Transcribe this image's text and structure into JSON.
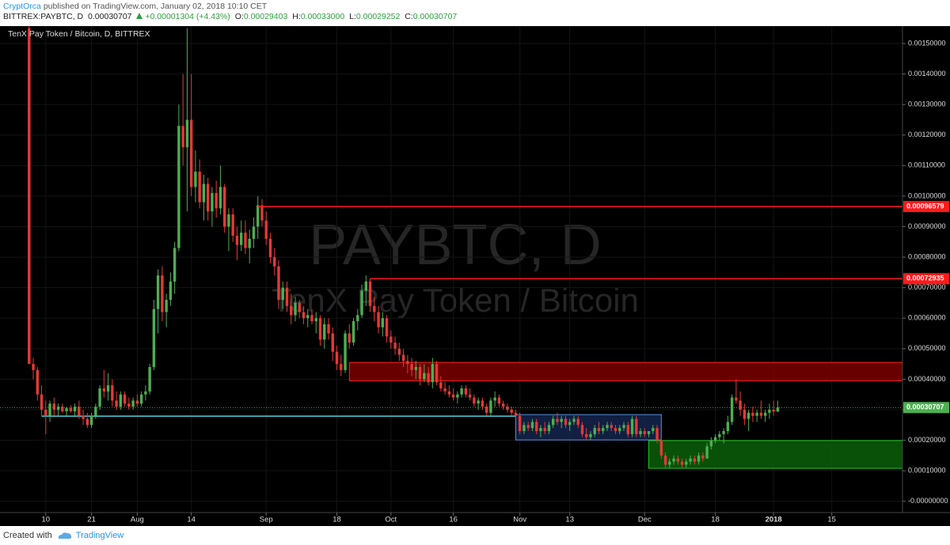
{
  "header": {
    "author": "CryptOrca",
    "published": "published on TradingView.com, January 02, 2018 10:10 CET",
    "symbol": "BITTREX:PAYBTC, D",
    "last": "0.00030707",
    "change": "+0.00001304 (+4.43%)",
    "ohlc": [
      {
        "label": "O:",
        "value": "0.00029403"
      },
      {
        "label": "H:",
        "value": "0.00033000"
      },
      {
        "label": "L:",
        "value": "0.00029252"
      },
      {
        "label": "C:",
        "value": "0.00030707"
      }
    ]
  },
  "footer": {
    "created": "Created with",
    "brand": "TradingView"
  },
  "chart_data": {
    "type": "candlestick",
    "title": "TenX Pay Token / Bitcoin, D, BITTREX",
    "watermark": [
      "PAYBTC, D",
      "TenX Pay Token / Bitcoin"
    ],
    "up_color": "#4caf50",
    "down_color": "#e53935",
    "grid": true,
    "x": [
      "2017-07-06",
      "2017-07-07",
      "2017-07-08",
      "2017-07-09",
      "2017-07-10",
      "2017-07-11",
      "2017-07-12",
      "2017-07-13",
      "2017-07-14",
      "2017-07-15",
      "2017-07-16",
      "2017-07-17",
      "2017-07-18",
      "2017-07-19",
      "2017-07-20",
      "2017-07-21",
      "2017-07-22",
      "2017-07-23",
      "2017-07-24",
      "2017-07-25",
      "2017-07-26",
      "2017-07-27",
      "2017-07-28",
      "2017-07-29",
      "2017-07-30",
      "2017-07-31",
      "2017-08-01",
      "2017-08-02",
      "2017-08-03",
      "2017-08-04",
      "2017-08-05",
      "2017-08-06",
      "2017-08-07",
      "2017-08-08",
      "2017-08-09",
      "2017-08-10",
      "2017-08-11",
      "2017-08-12",
      "2017-08-13",
      "2017-08-14",
      "2017-08-15",
      "2017-08-16",
      "2017-08-17",
      "2017-08-18",
      "2017-08-19",
      "2017-08-20",
      "2017-08-21",
      "2017-08-22",
      "2017-08-23",
      "2017-08-24",
      "2017-08-25",
      "2017-08-26",
      "2017-08-27",
      "2017-08-28",
      "2017-08-29",
      "2017-08-30",
      "2017-08-31",
      "2017-09-01",
      "2017-09-02",
      "2017-09-03",
      "2017-09-04",
      "2017-09-05",
      "2017-09-06",
      "2017-09-07",
      "2017-09-08",
      "2017-09-09",
      "2017-09-10",
      "2017-09-11",
      "2017-09-12",
      "2017-09-13",
      "2017-09-14",
      "2017-09-15",
      "2017-09-16",
      "2017-09-17",
      "2017-09-18",
      "2017-09-19",
      "2017-09-20",
      "2017-09-21",
      "2017-09-22",
      "2017-09-23",
      "2017-09-24",
      "2017-09-25",
      "2017-09-26",
      "2017-09-27",
      "2017-09-28",
      "2017-09-29",
      "2017-09-30",
      "2017-10-01",
      "2017-10-02",
      "2017-10-03",
      "2017-10-04",
      "2017-10-05",
      "2017-10-06",
      "2017-10-07",
      "2017-10-08",
      "2017-10-09",
      "2017-10-10",
      "2017-10-11",
      "2017-10-12",
      "2017-10-13",
      "2017-10-14",
      "2017-10-15",
      "2017-10-16",
      "2017-10-17",
      "2017-10-18",
      "2017-10-19",
      "2017-10-20",
      "2017-10-21",
      "2017-10-22",
      "2017-10-23",
      "2017-10-24",
      "2017-10-25",
      "2017-10-26",
      "2017-10-27",
      "2017-10-28",
      "2017-10-29",
      "2017-10-30",
      "2017-10-31",
      "2017-11-01",
      "2017-11-02",
      "2017-11-03",
      "2017-11-04",
      "2017-11-05",
      "2017-11-06",
      "2017-11-07",
      "2017-11-08",
      "2017-11-09",
      "2017-11-10",
      "2017-11-11",
      "2017-11-12",
      "2017-11-13",
      "2017-11-14",
      "2017-11-15",
      "2017-11-16",
      "2017-11-17",
      "2017-11-18",
      "2017-11-19",
      "2017-11-20",
      "2017-11-21",
      "2017-11-22",
      "2017-11-23",
      "2017-11-24",
      "2017-11-25",
      "2017-11-26",
      "2017-11-27",
      "2017-11-28",
      "2017-11-29",
      "2017-11-30",
      "2017-12-01",
      "2017-12-02",
      "2017-12-03",
      "2017-12-04",
      "2017-12-05",
      "2017-12-06",
      "2017-12-07",
      "2017-12-08",
      "2017-12-09",
      "2017-12-10",
      "2017-12-11",
      "2017-12-12",
      "2017-12-13",
      "2017-12-14",
      "2017-12-15",
      "2017-12-16",
      "2017-12-17",
      "2017-12-18",
      "2017-12-19",
      "2017-12-20",
      "2017-12-21",
      "2017-12-22",
      "2017-12-23",
      "2017-12-24",
      "2017-12-25",
      "2017-12-26",
      "2017-12-27",
      "2017-12-28",
      "2017-12-29",
      "2017-12-30",
      "2017-12-31",
      "2018-01-01",
      "2018-01-02"
    ],
    "open": [
      0.00155,
      0.00045,
      0.00043,
      0.00035,
      0.0003,
      0.00028,
      0.00032,
      0.0003,
      0.00031,
      0.000295,
      0.000305,
      0.000295,
      0.00031,
      0.00028,
      0.00027,
      0.00025,
      0.00028,
      0.00031,
      0.00037,
      0.00036,
      0.00038,
      0.00033,
      0.00031,
      0.00035,
      0.00032,
      0.00031,
      0.00033,
      0.00032,
      0.00035,
      0.00036,
      0.00044,
      0.00063,
      0.00074,
      0.00062,
      0.00066,
      0.00072,
      0.00083,
      0.00123,
      0.00116,
      0.00125,
      0.00103,
      0.00108,
      0.00098,
      0.00104,
      0.00095,
      0.00101,
      0.00096,
      0.00103,
      0.0009,
      0.00094,
      0.00087,
      0.00084,
      0.00088,
      0.00083,
      0.00086,
      0.0009,
      0.00097,
      0.00092,
      0.00086,
      0.0008,
      0.00077,
      0.00066,
      0.0007,
      0.00064,
      0.00061,
      0.00065,
      0.00062,
      0.0006,
      0.00061,
      0.00059,
      0.0006,
      0.00053,
      0.00058,
      0.00055,
      0.00049,
      0.00045,
      0.00043,
      0.00055,
      0.00052,
      0.00059,
      0.00061,
      0.00069,
      0.00072,
      0.00064,
      0.00062,
      0.00057,
      0.0006,
      0.00054,
      0.00052,
      0.0005,
      0.00048,
      0.00046,
      0.00045,
      0.00043,
      0.00044,
      0.0004,
      0.00042,
      0.00039,
      0.00045,
      0.00039,
      0.00037,
      0.00036,
      0.00035,
      0.00034,
      0.00035,
      0.00037,
      0.00035,
      0.00034,
      0.00032,
      0.00033,
      0.00031,
      0.00029,
      0.00033,
      0.00034,
      0.00032,
      0.00031,
      0.0003,
      0.00029,
      0.00028,
      0.00023,
      0.00025,
      0.00024,
      0.00026,
      0.00023,
      0.00024,
      0.00023,
      0.00025,
      0.00027,
      0.00026,
      0.00027,
      0.00025,
      0.00026,
      0.00027,
      0.00025,
      0.00022,
      0.00021,
      0.00022,
      0.00024,
      0.00023,
      0.00024,
      0.00025,
      0.00024,
      0.00023,
      0.00024,
      0.00025,
      0.00022,
      0.00027,
      0.00022,
      0.00023,
      0.00022,
      0.00023,
      0.00024,
      0.0002,
      0.00015,
      0.00012,
      0.00013,
      0.00014,
      0.00013,
      0.00012,
      0.00013,
      0.00014,
      0.00013,
      0.00015,
      0.00014,
      0.00018,
      0.0002,
      0.00021,
      0.00022,
      0.00023,
      0.00026,
      0.00034,
      0.00033,
      0.0003,
      0.00027,
      0.00029,
      0.00028,
      0.00029,
      0.00028,
      0.00029,
      0.0003,
      0.00029403
    ],
    "high": [
      0.0016,
      0.00047,
      0.00044,
      0.00038,
      0.00033,
      0.00033,
      0.00034,
      0.00032,
      0.00032,
      0.00031,
      0.000315,
      0.00032,
      0.00033,
      0.0003,
      0.00029,
      0.00029,
      0.00032,
      0.00038,
      0.00043,
      0.00042,
      0.0004,
      0.00036,
      0.00036,
      0.00036,
      0.00034,
      0.00034,
      0.00035,
      0.00036,
      0.00038,
      0.00045,
      0.00066,
      0.00076,
      0.00077,
      0.00068,
      0.00075,
      0.00085,
      0.0013,
      0.0014,
      0.00155,
      0.0014,
      0.00115,
      0.00112,
      0.00107,
      0.00106,
      0.00103,
      0.00105,
      0.0011,
      0.00104,
      0.00096,
      0.00096,
      0.0009,
      0.00092,
      0.00092,
      0.00089,
      0.00093,
      0.001,
      0.00099,
      0.00095,
      0.00088,
      0.00083,
      0.00079,
      0.00072,
      0.00072,
      0.00068,
      0.00067,
      0.00066,
      0.00064,
      0.00063,
      0.00063,
      0.00062,
      0.00061,
      0.0006,
      0.0006,
      0.00057,
      0.00051,
      0.00048,
      0.00056,
      0.00058,
      0.0006,
      0.00063,
      0.00071,
      0.00074,
      0.00073,
      0.00067,
      0.00064,
      0.00062,
      0.00061,
      0.00056,
      0.00054,
      0.00052,
      0.0005,
      0.00048,
      0.00047,
      0.00046,
      0.00045,
      0.00045,
      0.00044,
      0.00047,
      0.00046,
      0.00041,
      0.00039,
      0.00038,
      0.00037,
      0.00036,
      0.00038,
      0.00038,
      0.00037,
      0.00035,
      0.00034,
      0.00034,
      0.00032,
      0.00034,
      0.00036,
      0.00035,
      0.00033,
      0.00032,
      0.00031,
      0.0003,
      0.00029,
      0.00026,
      0.00026,
      0.00027,
      0.00027,
      0.00025,
      0.00026,
      0.00026,
      0.00028,
      0.00029,
      0.00028,
      0.00028,
      0.00027,
      0.00028,
      0.00028,
      0.00026,
      0.00024,
      0.00023,
      0.00025,
      0.00026,
      0.00025,
      0.00026,
      0.00026,
      0.00025,
      0.00025,
      0.00026,
      0.00026,
      0.00028,
      0.00028,
      0.00024,
      0.00024,
      0.00023,
      0.00025,
      0.00025,
      0.00021,
      0.00016,
      0.00014,
      0.00015,
      0.00015,
      0.00014,
      0.00014,
      0.00015,
      0.00015,
      0.00016,
      0.00016,
      0.00019,
      0.00021,
      0.00022,
      0.00023,
      0.00024,
      0.00028,
      0.00035,
      0.0004,
      0.00036,
      0.00032,
      0.0003,
      0.00031,
      0.0003,
      0.00033,
      0.0003,
      0.00032,
      0.00033,
      0.00033
    ],
    "low": [
      0.00045,
      0.0004,
      0.00033,
      0.00028,
      0.00022,
      0.00026,
      0.00028,
      0.00028,
      0.00029,
      0.00028,
      0.00029,
      0.00028,
      0.00027,
      0.00025,
      0.00024,
      0.00024,
      0.00027,
      0.0003,
      0.00034,
      0.00033,
      0.00031,
      0.0003,
      0.0003,
      0.00031,
      0.0003,
      0.0003,
      0.00031,
      0.00031,
      0.00033,
      0.00035,
      0.00043,
      0.00055,
      0.00059,
      0.00057,
      0.00064,
      0.00068,
      0.00082,
      0.0011,
      0.00095,
      0.001,
      0.00098,
      0.00096,
      0.00092,
      0.00092,
      0.0009,
      0.00093,
      0.00094,
      0.00088,
      0.00082,
      0.00085,
      0.00079,
      0.00082,
      0.00081,
      0.00078,
      0.00083,
      0.00086,
      0.0009,
      0.00084,
      0.00078,
      0.00074,
      0.00063,
      0.00063,
      0.00062,
      0.00058,
      0.00059,
      0.0006,
      0.00058,
      0.00057,
      0.00058,
      0.00055,
      0.00051,
      0.0005,
      0.00053,
      0.00046,
      0.00043,
      0.00041,
      0.00042,
      0.0005,
      0.00051,
      0.00056,
      0.0006,
      0.00064,
      0.00062,
      0.00059,
      0.00055,
      0.00054,
      0.00052,
      0.0005,
      0.00048,
      0.00046,
      0.00044,
      0.00042,
      0.00041,
      0.0004,
      0.00038,
      0.00039,
      0.00038,
      0.00037,
      0.00038,
      0.00036,
      0.00035,
      0.00034,
      0.00033,
      0.00032,
      0.00034,
      0.00034,
      0.00033,
      0.00031,
      0.0003,
      0.0003,
      0.00028,
      0.00028,
      0.00031,
      0.00031,
      0.0003,
      0.00029,
      0.00028,
      0.00027,
      0.00022,
      0.00022,
      0.00023,
      0.00023,
      0.00022,
      0.00021,
      0.00022,
      0.00022,
      0.00024,
      0.00025,
      0.00024,
      0.00024,
      0.00023,
      0.00025,
      0.00024,
      0.00021,
      0.0002,
      0.0002,
      0.00021,
      0.00022,
      0.00022,
      0.00023,
      0.00023,
      0.00022,
      0.00022,
      0.00023,
      0.00021,
      0.00021,
      0.00021,
      0.00021,
      0.00021,
      0.00021,
      0.00022,
      0.00019,
      0.00014,
      0.00011,
      0.00011,
      0.00012,
      0.00012,
      0.00011,
      0.00011,
      0.00012,
      0.00012,
      0.00012,
      0.00013,
      0.00014,
      0.00017,
      0.00019,
      0.0002,
      0.00019,
      0.00022,
      0.00025,
      0.00032,
      0.00028,
      0.00025,
      0.00023,
      0.00026,
      0.00026,
      0.00027,
      0.00026,
      0.00027,
      0.00028,
      0.00029252
    ],
    "close": [
      0.00045,
      0.00043,
      0.00035,
      0.0003,
      0.00028,
      0.00032,
      0.0003,
      0.00031,
      0.000295,
      0.000305,
      0.000295,
      0.00031,
      0.00028,
      0.00027,
      0.00025,
      0.00028,
      0.00031,
      0.00037,
      0.00036,
      0.00038,
      0.00033,
      0.00031,
      0.00035,
      0.00032,
      0.00031,
      0.00033,
      0.00032,
      0.00035,
      0.00036,
      0.00044,
      0.00063,
      0.00074,
      0.00062,
      0.00066,
      0.00072,
      0.00083,
      0.00123,
      0.00116,
      0.00125,
      0.00103,
      0.00108,
      0.00098,
      0.00104,
      0.00095,
      0.00101,
      0.00096,
      0.00103,
      0.0009,
      0.00094,
      0.00087,
      0.00084,
      0.00088,
      0.00083,
      0.00086,
      0.0009,
      0.00097,
      0.00092,
      0.00086,
      0.0008,
      0.00077,
      0.00066,
      0.0007,
      0.00064,
      0.00061,
      0.00065,
      0.00062,
      0.0006,
      0.00061,
      0.00059,
      0.0006,
      0.00053,
      0.00058,
      0.00055,
      0.00049,
      0.00045,
      0.00043,
      0.00055,
      0.00052,
      0.00059,
      0.00061,
      0.00069,
      0.00072,
      0.00064,
      0.00062,
      0.00057,
      0.0006,
      0.00054,
      0.00052,
      0.0005,
      0.00048,
      0.00046,
      0.00045,
      0.00043,
      0.00044,
      0.0004,
      0.00042,
      0.00039,
      0.00045,
      0.00039,
      0.00037,
      0.00036,
      0.00035,
      0.00034,
      0.00035,
      0.00037,
      0.00035,
      0.00034,
      0.00032,
      0.00033,
      0.00031,
      0.00029,
      0.00033,
      0.00034,
      0.00032,
      0.00031,
      0.0003,
      0.00029,
      0.00028,
      0.00023,
      0.00025,
      0.00024,
      0.00026,
      0.00023,
      0.00024,
      0.00023,
      0.00025,
      0.00027,
      0.00026,
      0.00027,
      0.00025,
      0.00026,
      0.00027,
      0.00025,
      0.00022,
      0.00021,
      0.00022,
      0.00024,
      0.00023,
      0.00024,
      0.00025,
      0.00024,
      0.00023,
      0.00024,
      0.00025,
      0.00022,
      0.00027,
      0.00022,
      0.00023,
      0.00022,
      0.00023,
      0.00024,
      0.0002,
      0.00015,
      0.00012,
      0.00013,
      0.00014,
      0.00013,
      0.00012,
      0.00013,
      0.00014,
      0.00013,
      0.00015,
      0.00014,
      0.00018,
      0.0002,
      0.00021,
      0.00022,
      0.00023,
      0.00026,
      0.00034,
      0.00033,
      0.0003,
      0.00027,
      0.00029,
      0.00028,
      0.00029,
      0.00028,
      0.00029,
      0.0003,
      0.00029403,
      0.00030707
    ],
    "last_color": "#4caf50",
    "xlim": [
      "2017-06-29",
      "2018-02-01"
    ],
    "xticks": [
      {
        "value": "2017-07-10",
        "label": "10"
      },
      {
        "value": "2017-07-21",
        "label": "21"
      },
      {
        "value": "2017-08-01",
        "label": "Aug"
      },
      {
        "value": "2017-08-14",
        "label": "14"
      },
      {
        "value": "2017-09-01",
        "label": "Sep"
      },
      {
        "value": "2017-09-18",
        "label": "18"
      },
      {
        "value": "2017-10-01",
        "label": "Oct"
      },
      {
        "value": "2017-10-16",
        "label": "16"
      },
      {
        "value": "2017-11-01",
        "label": "Nov"
      },
      {
        "value": "2017-11-13",
        "label": "13"
      },
      {
        "value": "2017-12-01",
        "label": "Dec"
      },
      {
        "value": "2017-12-18",
        "label": "18"
      },
      {
        "value": "2018-01-01",
        "label": "2018"
      },
      {
        "value": "2018-01-15",
        "label": "15"
      }
    ],
    "ylim": [
      -3.7e-05,
      0.001557
    ],
    "yticks": [
      {
        "value": 0,
        "label": "-0.00000000"
      },
      {
        "value": 0.0001,
        "label": "0.00010000"
      },
      {
        "value": 0.0002,
        "label": "0.00020000"
      },
      {
        "value": 0.0003,
        "label": "0.00030000"
      },
      {
        "value": 0.0004,
        "label": "0.00040000"
      },
      {
        "value": 0.0005,
        "label": "0.00050000"
      },
      {
        "value": 0.0006,
        "label": "0.00060000"
      },
      {
        "value": 0.0007,
        "label": "0.00070000"
      },
      {
        "value": 0.0008,
        "label": "0.00080000"
      },
      {
        "value": 0.0009,
        "label": "0.00090000"
      },
      {
        "value": 0.001,
        "label": "0.00100000"
      },
      {
        "value": 0.0011,
        "label": "0.00110000"
      },
      {
        "value": 0.0012,
        "label": "0.00120000"
      },
      {
        "value": 0.0013,
        "label": "0.00130000"
      },
      {
        "value": 0.0014,
        "label": "0.00140000"
      },
      {
        "value": 0.0015,
        "label": "0.00150000"
      }
    ],
    "levels": [
      {
        "value": 0.00096579,
        "start": "2017-08-30",
        "color": "#ff1a1a"
      },
      {
        "value": 0.00072935,
        "start": "2017-09-26",
        "color": "#ff1a1a"
      }
    ],
    "hlines": [
      {
        "value": 0.000279,
        "start": "2017-07-09",
        "end": "2017-10-31",
        "color": "#4dd0e1"
      }
    ],
    "zones": [
      {
        "low": 0.000395,
        "high": 0.000455,
        "start": "2017-09-21",
        "color": "#7a0000",
        "edge": "#ff2222"
      },
      {
        "low": 0.000201,
        "high": 0.000284,
        "start": "2017-10-31",
        "end": "2017-12-05",
        "color": "#14254d",
        "edge": "#5b8fd6"
      },
      {
        "low": 0.000108,
        "high": 0.000199,
        "start": "2017-12-02",
        "color": "#0b5e0b",
        "edge": "#22cc22"
      }
    ]
  }
}
